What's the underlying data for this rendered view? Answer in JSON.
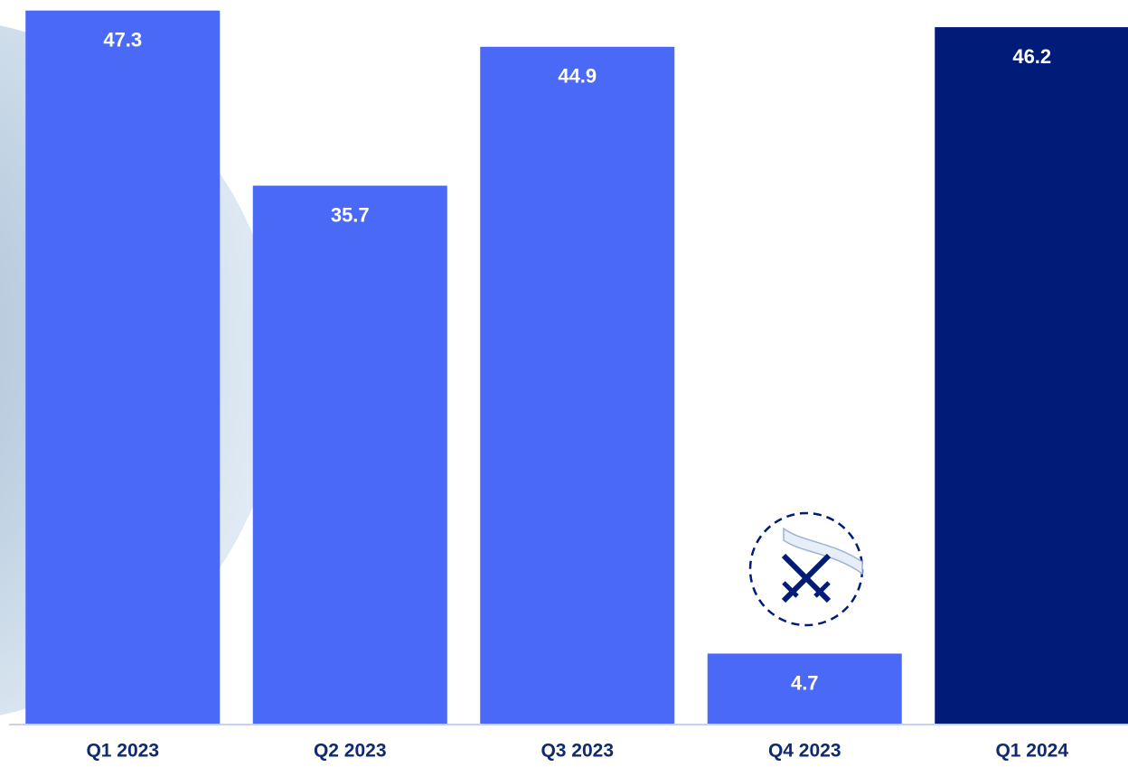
{
  "chart_data": {
    "type": "bar",
    "categories": [
      "Q1 2023",
      "Q2 2023",
      "Q3 2023",
      "Q4 2023",
      "Q1 2024"
    ],
    "values": [
      47.3,
      35.7,
      44.9,
      4.7,
      46.2
    ],
    "colors": [
      "#4a69f6",
      "#4a69f6",
      "#4a69f6",
      "#4a69f6",
      "#001c78"
    ],
    "ylim": [
      0,
      48
    ]
  }
}
